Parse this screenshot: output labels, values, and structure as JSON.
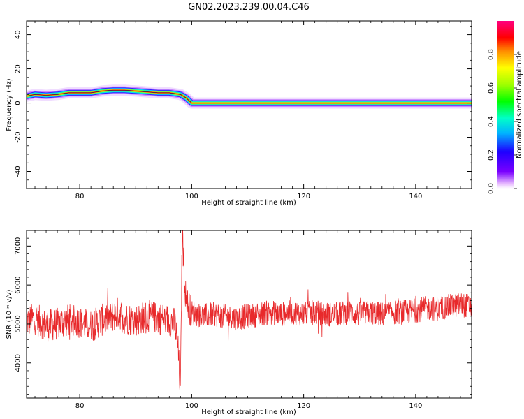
{
  "title": "GN02.2023.239.00.04.C46",
  "chart_data": [
    {
      "type": "heatmap",
      "title": "",
      "xlabel": "Height of straight line (km)",
      "ylabel": "Frequency (Hz)",
      "xlim": [
        70.5,
        150
      ],
      "ylim": [
        -50,
        48
      ],
      "x_ticks": [
        80,
        100,
        120,
        140
      ],
      "y_ticks": [
        40,
        20,
        0,
        -20,
        -40
      ],
      "colorbar": {
        "label": "Normalized spectral amplitude",
        "range": [
          0,
          1
        ],
        "ticks": [
          "0.0",
          "0.2",
          "0.4",
          "0.6",
          "0.8"
        ],
        "colormap": "rainbow (magenta-blue-cyan-green-yellow-red-pink)"
      },
      "peak_frequency_curve": {
        "x": [
          70.5,
          72.0,
          74.0,
          76.0,
          78.0,
          80.0,
          82.0,
          84.0,
          86.0,
          88.0,
          90.0,
          92.0,
          94.0,
          96.0,
          98.0,
          99.0,
          100.0,
          110.0,
          120.0,
          130.0,
          140.0,
          150.0
        ],
        "y": [
          4,
          5,
          4.5,
          5,
          6,
          6,
          6,
          7,
          7.5,
          7.5,
          7,
          6.5,
          6,
          6,
          5,
          3,
          0,
          0,
          0,
          0,
          0,
          0
        ]
      },
      "grid": false,
      "legend": "none"
    },
    {
      "type": "line",
      "title": "",
      "xlabel": "Height of straight line (km)",
      "ylabel": "SNR (10 * v/v)",
      "xlim": [
        70.5,
        150
      ],
      "ylim": [
        3100,
        7400
      ],
      "x_ticks": [
        80,
        100,
        120,
        140
      ],
      "y_ticks": [
        7000,
        6000,
        5000,
        4000
      ],
      "line_color": "#e8292b",
      "series": [
        {
          "x": [
            70.5,
            72,
            74,
            76,
            78,
            80,
            82,
            84,
            86,
            87,
            88,
            90,
            92,
            94,
            96,
            97,
            97.5,
            98,
            98.3,
            98.7,
            99,
            100,
            102,
            104,
            106,
            108,
            110,
            112,
            114,
            116,
            118,
            120,
            122,
            124,
            126,
            128,
            130,
            132,
            134,
            136,
            138,
            140,
            142,
            144,
            146,
            148,
            150
          ],
          "values": [
            5050,
            5150,
            4950,
            5000,
            5100,
            5050,
            4950,
            5100,
            5200,
            5300,
            5150,
            5100,
            5200,
            5150,
            5100,
            5000,
            4500,
            3300,
            7400,
            6200,
            5600,
            5300,
            5200,
            5250,
            5200,
            5150,
            5200,
            5250,
            5300,
            5250,
            5300,
            5250,
            5300,
            5250,
            5250,
            5300,
            5250,
            5300,
            5250,
            5300,
            5300,
            5350,
            5400,
            5400,
            5450,
            5500,
            5450
          ]
        }
      ],
      "grid": false,
      "legend": "none"
    }
  ]
}
